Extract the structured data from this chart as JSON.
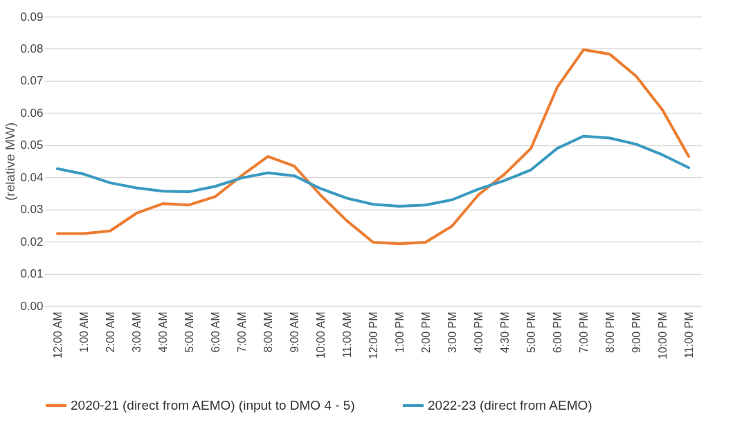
{
  "chart_data": {
    "type": "line",
    "ylabel": "(relative MW)",
    "categories": [
      "12:00 AM",
      "1:00 AM",
      "2:00 AM",
      "3:00 AM",
      "4:00 AM",
      "5:00 AM",
      "6:00 AM",
      "7:00 AM",
      "8:00 AM",
      "9:00 AM",
      "10:00 AM",
      "11:00 AM",
      "12:00 PM",
      "1:00 PM",
      "2:00 PM",
      "3:00 PM",
      "4:00 PM",
      "4:30 PM",
      "5:00 PM",
      "6:00 PM",
      "7:00 PM",
      "8:00 PM",
      "9:00 PM",
      "10:00 PM",
      "11:00 PM"
    ],
    "series": [
      {
        "name": "2020-21 (direct from AEMO) (input to DMO 4 - 5)",
        "color": "#ed7d31",
        "values": [
          0.0225,
          0.0225,
          0.0233,
          0.0288,
          0.0318,
          0.0314,
          0.034,
          0.0405,
          0.0465,
          0.0435,
          0.0345,
          0.0265,
          0.0198,
          0.0193,
          0.0198,
          0.0248,
          0.0345,
          0.041,
          0.049,
          0.068,
          0.0797,
          0.0783,
          0.0715,
          0.061,
          0.0465
        ]
      },
      {
        "name": "2022-23 (direct from AEMO)",
        "color": "#3a9ac0",
        "values": [
          0.0427,
          0.041,
          0.0383,
          0.0367,
          0.0357,
          0.0355,
          0.0372,
          0.0398,
          0.0414,
          0.0405,
          0.0365,
          0.0335,
          0.0316,
          0.031,
          0.0314,
          0.033,
          0.0363,
          0.039,
          0.0423,
          0.049,
          0.0528,
          0.0522,
          0.0503,
          0.047,
          0.043
        ]
      }
    ],
    "ylim": [
      0,
      0.09
    ],
    "yticks": [
      {
        "value": 0,
        "label": "0.00"
      },
      {
        "value": 0.01,
        "label": "0.01"
      },
      {
        "value": 0.02,
        "label": "0.02"
      },
      {
        "value": 0.03,
        "label": "0.03"
      },
      {
        "value": 0.04,
        "label": "0.04"
      },
      {
        "value": 0.05,
        "label": "0.05"
      },
      {
        "value": 0.06,
        "label": "0.06"
      },
      {
        "value": 0.07,
        "label": "0.07"
      },
      {
        "value": 0.08,
        "label": "0.08"
      },
      {
        "value": 0.09,
        "label": "0.09"
      }
    ],
    "grid": "y",
    "legend": "bottom",
    "marker": "none",
    "line_style": "solid"
  }
}
